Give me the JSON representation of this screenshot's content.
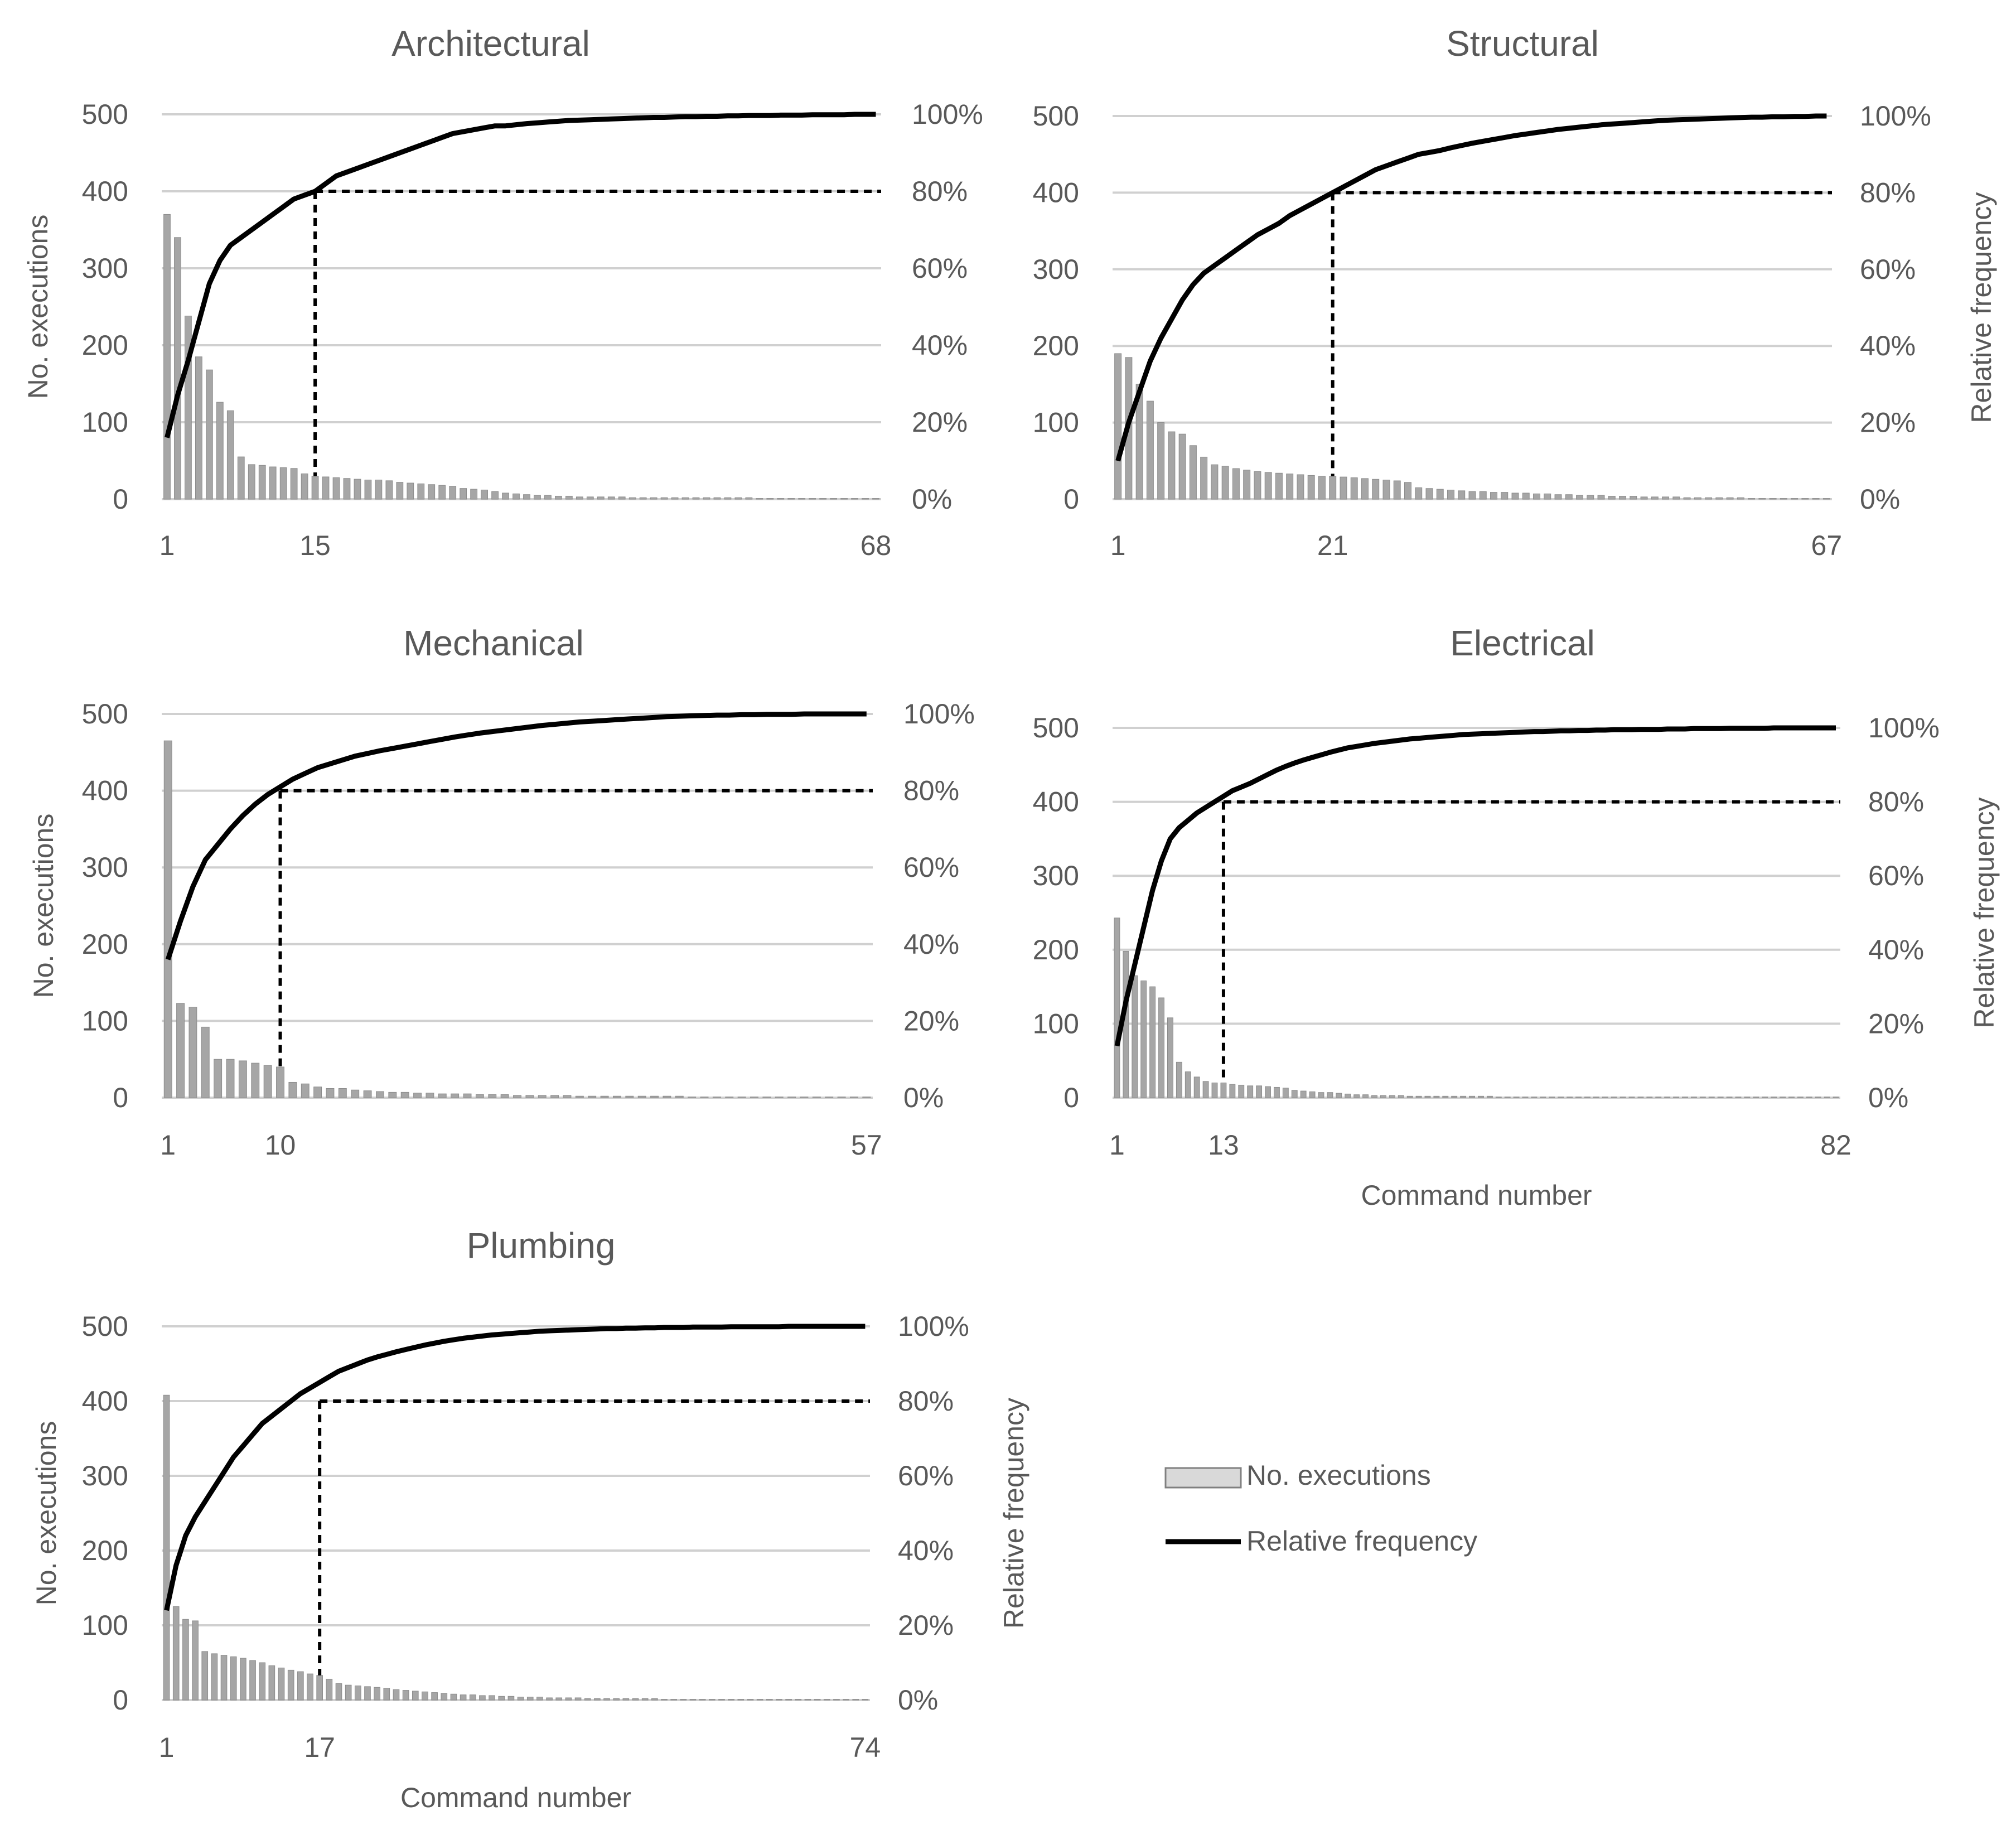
{
  "legend": {
    "bars_label": "No. executions",
    "line_label": "Relative frequency"
  },
  "colors": {
    "bar": "#a6a6a6",
    "bar_stroke": "#8c8c8c",
    "line": "#000000",
    "grid": "#d0d0d0",
    "text": "#595959"
  },
  "chart_data": [
    {
      "type": "bar",
      "title": "Architectural",
      "n": 68,
      "x_ticks": [
        "1",
        "15",
        "68"
      ],
      "cutoff": 15,
      "y_ticks": [
        "0",
        "100",
        "200",
        "300",
        "400",
        "500"
      ],
      "y2_ticks": [
        "0%",
        "20%",
        "40%",
        "60%",
        "80%",
        "100%"
      ],
      "ylabel": "No. executions",
      "y2label": "",
      "xlabel": "",
      "ylim": [
        0,
        500
      ],
      "y2lim": [
        0,
        100
      ],
      "values": [
        370,
        340,
        238,
        185,
        168,
        126,
        115,
        55,
        45,
        44,
        42,
        41,
        40,
        33,
        30,
        29,
        28,
        27,
        26,
        25,
        25,
        24,
        22,
        21,
        20,
        19,
        18,
        17,
        14,
        13,
        12,
        10,
        8,
        7,
        6,
        5,
        5,
        4,
        4,
        3,
        3,
        3,
        3,
        3,
        2,
        2,
        2,
        2,
        2,
        2,
        2,
        2,
        2,
        2,
        2,
        2,
        1,
        1,
        1,
        1,
        1,
        1,
        1,
        1,
        1,
        1,
        1,
        1
      ],
      "cumulative_pct": [
        16,
        27,
        36,
        46,
        56,
        62,
        66,
        68,
        70,
        72,
        74,
        76,
        78,
        79,
        80,
        82,
        84,
        85,
        86,
        87,
        88,
        89,
        90,
        91,
        92,
        93,
        94,
        95,
        95.5,
        96,
        96.5,
        97,
        97,
        97.3,
        97.6,
        97.8,
        98,
        98.2,
        98.4,
        98.5,
        98.6,
        98.7,
        98.8,
        98.9,
        99,
        99.1,
        99.2,
        99.2,
        99.3,
        99.4,
        99.4,
        99.5,
        99.5,
        99.6,
        99.6,
        99.7,
        99.7,
        99.7,
        99.8,
        99.8,
        99.8,
        99.9,
        99.9,
        99.9,
        99.9,
        100,
        100,
        100
      ]
    },
    {
      "type": "bar",
      "title": "Structural",
      "n": 67,
      "x_ticks": [
        "1",
        "21",
        "67"
      ],
      "cutoff": 21,
      "y_ticks": [
        "0",
        "100",
        "200",
        "300",
        "400",
        "500"
      ],
      "y2_ticks": [
        "0%",
        "20%",
        "40%",
        "60%",
        "80%",
        "100%"
      ],
      "ylabel": "",
      "y2label": "Relative frequency",
      "xlabel": "",
      "ylim": [
        0,
        500
      ],
      "y2lim": [
        0,
        100
      ],
      "values": [
        190,
        185,
        150,
        128,
        100,
        88,
        85,
        70,
        55,
        45,
        43,
        40,
        38,
        36,
        35,
        34,
        33,
        32,
        31,
        30,
        30,
        29,
        28,
        27,
        26,
        25,
        24,
        22,
        15,
        14,
        13,
        12,
        11,
        10,
        10,
        9,
        9,
        8,
        8,
        7,
        7,
        6,
        6,
        5,
        5,
        5,
        4,
        4,
        4,
        3,
        3,
        3,
        3,
        2,
        2,
        2,
        2,
        2,
        2,
        1,
        1,
        1,
        1,
        1,
        1,
        1,
        1
      ],
      "cumulative_pct": [
        10,
        20,
        28,
        36,
        42,
        47,
        52,
        56,
        59,
        61,
        63,
        65,
        67,
        69,
        70.5,
        72,
        74,
        75.5,
        77,
        78.5,
        80,
        81.5,
        83,
        84.5,
        86,
        87,
        88,
        89,
        90,
        90.5,
        91,
        91.7,
        92.3,
        92.9,
        93.4,
        93.9,
        94.4,
        94.9,
        95.3,
        95.7,
        96.1,
        96.5,
        96.8,
        97.1,
        97.4,
        97.7,
        97.9,
        98.1,
        98.3,
        98.5,
        98.7,
        98.9,
        99,
        99.1,
        99.2,
        99.3,
        99.4,
        99.5,
        99.6,
        99.7,
        99.7,
        99.8,
        99.8,
        99.9,
        99.9,
        100,
        100
      ]
    },
    {
      "type": "bar",
      "title": "Mechanical",
      "n": 57,
      "x_ticks": [
        "1",
        "10",
        "57"
      ],
      "cutoff": 10,
      "y_ticks": [
        "0",
        "100",
        "200",
        "300",
        "400",
        "500"
      ],
      "y2_ticks": [
        "0%",
        "20%",
        "40%",
        "60%",
        "80%",
        "100%"
      ],
      "ylabel": "No. executions",
      "y2label": "",
      "xlabel": "",
      "ylim": [
        0,
        500
      ],
      "y2lim": [
        0,
        100
      ],
      "values": [
        465,
        123,
        118,
        92,
        50,
        50,
        48,
        45,
        42,
        40,
        20,
        18,
        14,
        12,
        12,
        10,
        9,
        8,
        7,
        7,
        6,
        6,
        5,
        5,
        5,
        4,
        4,
        4,
        3,
        3,
        3,
        3,
        3,
        2,
        2,
        2,
        2,
        2,
        2,
        2,
        2,
        2,
        1,
        1,
        1,
        1,
        1,
        1,
        1,
        1,
        1,
        1,
        1,
        1,
        1,
        1,
        1
      ],
      "cumulative_pct": [
        36,
        46,
        55,
        62,
        66,
        70,
        73.5,
        76.5,
        79,
        81,
        83,
        84.5,
        86,
        87,
        88,
        89,
        89.7,
        90.4,
        91,
        91.6,
        92.2,
        92.8,
        93.4,
        94,
        94.5,
        95,
        95.4,
        95.8,
        96.2,
        96.6,
        97,
        97.3,
        97.6,
        97.9,
        98.1,
        98.3,
        98.5,
        98.7,
        98.9,
        99.1,
        99.3,
        99.4,
        99.5,
        99.6,
        99.7,
        99.7,
        99.8,
        99.8,
        99.9,
        99.9,
        99.9,
        100,
        100,
        100,
        100,
        100,
        100
      ]
    },
    {
      "type": "bar",
      "title": "Electrical",
      "n": 82,
      "x_ticks": [
        "1",
        "13",
        "82"
      ],
      "cutoff": 13,
      "y_ticks": [
        "0",
        "100",
        "200",
        "300",
        "400",
        "500"
      ],
      "y2_ticks": [
        "0%",
        "20%",
        "40%",
        "60%",
        "80%",
        "100%"
      ],
      "ylabel": "",
      "y2label": "Relative frequency",
      "xlabel": "Command number",
      "ylim": [
        0,
        500
      ],
      "y2lim": [
        0,
        100
      ],
      "values": [
        243,
        198,
        165,
        158,
        150,
        135,
        108,
        48,
        35,
        28,
        22,
        20,
        20,
        18,
        17,
        16,
        16,
        15,
        14,
        13,
        10,
        9,
        8,
        7,
        7,
        6,
        5,
        4,
        4,
        3,
        3,
        3,
        3,
        2,
        2,
        2,
        2,
        2,
        2,
        2,
        2,
        2,
        2,
        1,
        1,
        1,
        1,
        1,
        1,
        1,
        1,
        1,
        1,
        1,
        1,
        1,
        1,
        1,
        1,
        1,
        1,
        1,
        1,
        1,
        1,
        1,
        1,
        1,
        1,
        1,
        1,
        1,
        1,
        1,
        1,
        1,
        1,
        1,
        1,
        1,
        1,
        1
      ],
      "cumulative_pct": [
        14,
        26,
        36,
        46,
        56,
        64,
        70,
        73,
        75,
        77,
        78.5,
        80,
        81.5,
        83,
        84,
        85,
        86.2,
        87.4,
        88.6,
        89.6,
        90.5,
        91.3,
        92,
        92.7,
        93.4,
        94,
        94.6,
        95,
        95.4,
        95.8,
        96.1,
        96.4,
        96.7,
        97,
        97.2,
        97.4,
        97.6,
        97.8,
        98,
        98.2,
        98.3,
        98.4,
        98.5,
        98.6,
        98.7,
        98.8,
        98.9,
        99,
        99,
        99.1,
        99.2,
        99.2,
        99.3,
        99.3,
        99.4,
        99.4,
        99.5,
        99.5,
        99.5,
        99.6,
        99.6,
        99.6,
        99.7,
        99.7,
        99.7,
        99.8,
        99.8,
        99.8,
        99.8,
        99.9,
        99.9,
        99.9,
        99.9,
        99.9,
        100,
        100,
        100,
        100,
        100,
        100,
        100,
        100
      ]
    },
    {
      "type": "bar",
      "title": "Plumbing",
      "n": 74,
      "x_ticks": [
        "1",
        "17",
        "74"
      ],
      "cutoff": 17,
      "y_ticks": [
        "0",
        "100",
        "200",
        "300",
        "400",
        "500"
      ],
      "y2_ticks": [
        "0%",
        "20%",
        "40%",
        "60%",
        "80%",
        "100%"
      ],
      "ylabel": "No. executions",
      "y2label": "Relative frequency",
      "xlabel": "Command number",
      "ylim": [
        0,
        500
      ],
      "y2lim": [
        0,
        100
      ],
      "values": [
        408,
        125,
        108,
        106,
        65,
        62,
        60,
        58,
        56,
        53,
        50,
        46,
        43,
        40,
        38,
        35,
        33,
        28,
        22,
        20,
        19,
        18,
        17,
        16,
        14,
        13,
        12,
        11,
        10,
        9,
        8,
        7,
        7,
        6,
        6,
        5,
        5,
        4,
        4,
        4,
        3,
        3,
        3,
        3,
        2,
        2,
        2,
        2,
        2,
        2,
        2,
        2,
        1,
        1,
        1,
        1,
        1,
        1,
        1,
        1,
        1,
        1,
        1,
        1,
        1,
        1,
        1,
        1,
        1,
        1,
        1,
        1,
        1,
        1
      ],
      "cumulative_pct": [
        24,
        36,
        44,
        49,
        53,
        57,
        61,
        65,
        68,
        71,
        74,
        76,
        78,
        80,
        82,
        83.5,
        85,
        86.5,
        88,
        89,
        90,
        91,
        91.8,
        92.5,
        93.2,
        93.8,
        94.4,
        95,
        95.5,
        96,
        96.4,
        96.8,
        97.1,
        97.4,
        97.7,
        97.9,
        98.1,
        98.3,
        98.5,
        98.7,
        98.8,
        98.9,
        99,
        99.1,
        99.2,
        99.3,
        99.4,
        99.4,
        99.5,
        99.5,
        99.6,
        99.6,
        99.7,
        99.7,
        99.7,
        99.8,
        99.8,
        99.8,
        99.8,
        99.9,
        99.9,
        99.9,
        99.9,
        99.9,
        99.9,
        100,
        100,
        100,
        100,
        100,
        100,
        100,
        100,
        100
      ]
    }
  ]
}
